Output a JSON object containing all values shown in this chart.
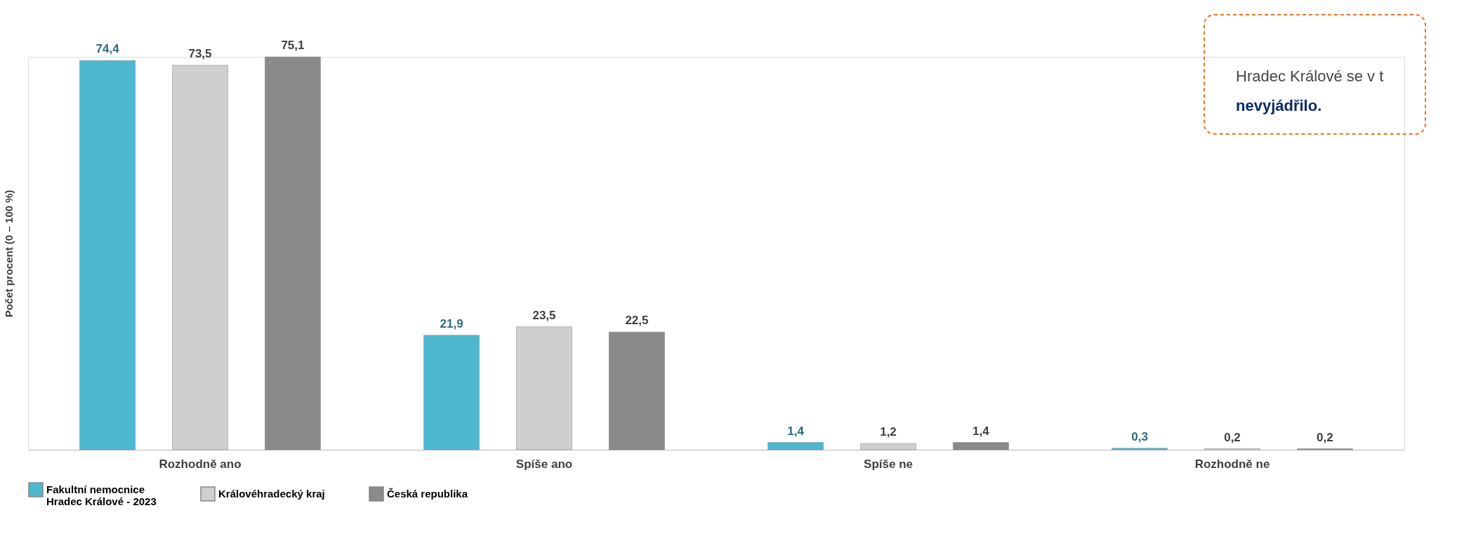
{
  "chart_data": {
    "type": "bar",
    "ylabel": "Počet procent  (0 – 100 %)",
    "categories": [
      "Rozhodně ano",
      "Spíše ano",
      "Spíše ne",
      "Rozhodně ne"
    ],
    "series": [
      {
        "name": "Fakultní nemocnice\nHradec Králové - 2023",
        "color": "#4db8d0",
        "values": [
          74.4,
          21.9,
          1.4,
          0.3
        ],
        "value_labels": [
          "74,4",
          "21,9",
          "1,4",
          "0,3"
        ]
      },
      {
        "name": "Královéhradecký kraj",
        "color": "#cfcfcf",
        "values": [
          73.5,
          23.5,
          1.2,
          0.2
        ],
        "value_labels": [
          "73,5",
          "23,5",
          "1,2",
          "0,2"
        ]
      },
      {
        "name": "Česká republika",
        "color": "#8a8a8a",
        "values": [
          75.1,
          22.5,
          1.4,
          0.2
        ],
        "value_labels": [
          "75,1",
          "22,5",
          "1,4",
          "0,2"
        ]
      }
    ],
    "annotations": [
      "Hradec Králové se v t",
      "nevyjádřilo."
    ],
    "legend": "bottom"
  }
}
